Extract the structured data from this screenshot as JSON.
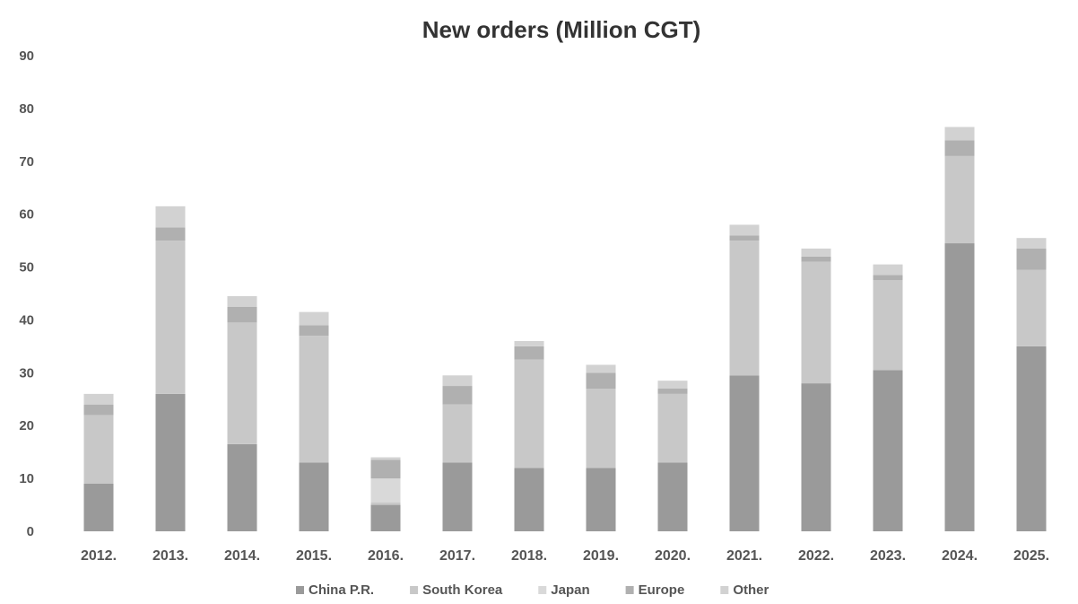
{
  "chart_data": {
    "type": "bar",
    "stacked": true,
    "title": "New orders (Million CGT)",
    "xlabel": "",
    "ylabel": "",
    "ylim": [
      0,
      90
    ],
    "yticks": [
      0,
      10,
      20,
      30,
      40,
      50,
      60,
      70,
      80,
      90
    ],
    "grid": false,
    "legend_position": "bottom",
    "categories": [
      "2012.",
      "2013.",
      "2014.",
      "2015.",
      "2016.",
      "2017.",
      "2018.",
      "2019.",
      "2020.",
      "2021.",
      "2022.",
      "2023.",
      "2024.",
      "2025."
    ],
    "series": [
      {
        "name": "China P.R.",
        "color": "#9a9a9a",
        "values": [
          9,
          26,
          16.5,
          13,
          5,
          13,
          12,
          12,
          13,
          29.5,
          28,
          30.5,
          54.5,
          35
        ]
      },
      {
        "name": "South Korea",
        "color": "#c8c8c8",
        "values": [
          13,
          29,
          23,
          24,
          0.5,
          11,
          20.5,
          15,
          13,
          25.5,
          23,
          17,
          16.5,
          14.5
        ]
      },
      {
        "name": "Japan",
        "color": "#d9d9d9",
        "values": [
          0,
          0,
          0,
          0,
          4.5,
          0,
          0,
          0,
          0,
          0,
          0,
          0,
          0,
          0
        ]
      },
      {
        "name": "Europe",
        "color": "#b0b0b0",
        "values": [
          2,
          2.5,
          3,
          2,
          3.5,
          3.5,
          2.5,
          3,
          1,
          1,
          1,
          1,
          3,
          4
        ]
      },
      {
        "name": "Other",
        "color": "#d2d2d2",
        "values": [
          2,
          4,
          2,
          2.5,
          0.5,
          2,
          1,
          1.5,
          1.5,
          2,
          1.5,
          2,
          2.5,
          2
        ]
      }
    ]
  }
}
